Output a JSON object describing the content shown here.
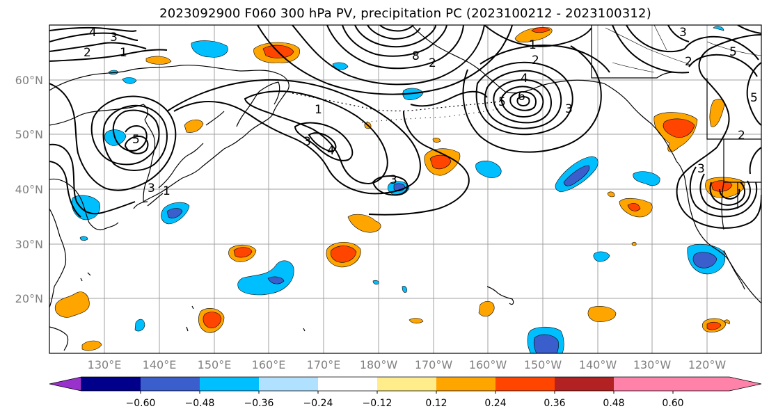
{
  "title": "2023092900 F060 300 hPa PV, precipitation PC (2023100212 - 2023100312)",
  "map": {
    "lat_labels": [
      "60°N",
      "50°N",
      "40°N",
      "30°N",
      "20°N"
    ],
    "lon_labels": [
      "130°E",
      "140°E",
      "150°E",
      "160°E",
      "170°E",
      "180°W",
      "170°W",
      "160°W",
      "150°W",
      "140°W",
      "130°W",
      "120°W"
    ],
    "contour_labels": [
      {
        "text": "4"
      },
      {
        "text": "3"
      },
      {
        "text": "2"
      },
      {
        "text": "1"
      },
      {
        "text": "5"
      },
      {
        "text": "3"
      },
      {
        "text": "1"
      },
      {
        "text": "1"
      },
      {
        "text": "3"
      },
      {
        "text": "4"
      },
      {
        "text": "3"
      },
      {
        "text": "8"
      },
      {
        "text": "2"
      },
      {
        "text": "2"
      },
      {
        "text": "4"
      },
      {
        "text": "6"
      },
      {
        "text": "5"
      },
      {
        "text": "3"
      },
      {
        "text": "1"
      },
      {
        "text": "3"
      },
      {
        "text": "5"
      },
      {
        "text": "2"
      },
      {
        "text": "2"
      },
      {
        "text": "5"
      },
      {
        "text": "3"
      }
    ]
  },
  "colorbar": {
    "ticks": [
      "−0.60",
      "−0.48",
      "−0.36",
      "−0.24",
      "−0.12",
      "0.12",
      "0.24",
      "0.36",
      "0.48",
      "0.60"
    ],
    "colors": [
      "#9932cc",
      "#00008b",
      "#3a5fcd",
      "#00bfff",
      "#b0e2ff",
      "#ffffff",
      "#ffec8b",
      "#ffa500",
      "#ff4500",
      "#b22222",
      "#ff82ab"
    ]
  }
}
